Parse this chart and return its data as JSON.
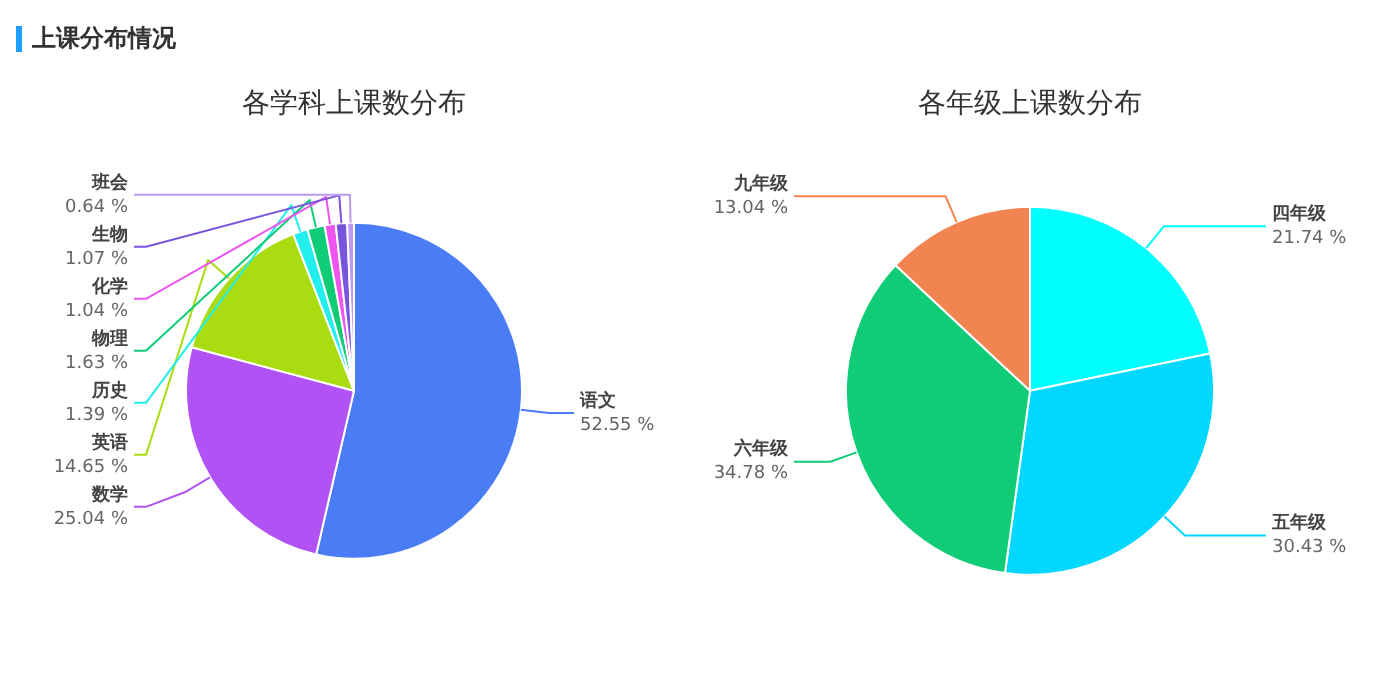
{
  "chart_data": [
    {
      "type": "pie",
      "title": "各学科上课数分布",
      "annotations": [
        "上课分布情况"
      ],
      "legend": false,
      "categories": [
        "语文",
        "数学",
        "英语",
        "历史",
        "物理",
        "化学",
        "生物",
        "班会"
      ],
      "values": [
        52.55,
        25.04,
        14.65,
        1.39,
        1.63,
        1.04,
        1.07,
        0.64
      ],
      "value_labels": [
        "52.55 %",
        "25.04 %",
        "14.65 %",
        "1.39 %",
        "1.63 %",
        "1.04 %",
        "1.07 %",
        "0.64 %"
      ],
      "colors": [
        "#4a7cf5",
        "#b152f5",
        "#aadd11",
        "#22eeee",
        "#11cc77",
        "#ee55ee",
        "#7755dd",
        "#bb99ee"
      ]
    },
    {
      "type": "pie",
      "title": "各年级上课数分布",
      "legend": false,
      "categories": [
        "四年级",
        "五年级",
        "六年级",
        "九年级"
      ],
      "values": [
        21.74,
        30.43,
        34.78,
        13.04
      ],
      "value_labels": [
        "21.74 %",
        "30.43 %",
        "34.78 %",
        "13.04 %"
      ],
      "colors": [
        "#00ffff",
        "#00d8ff",
        "#11cc77",
        "#f28452"
      ]
    }
  ]
}
